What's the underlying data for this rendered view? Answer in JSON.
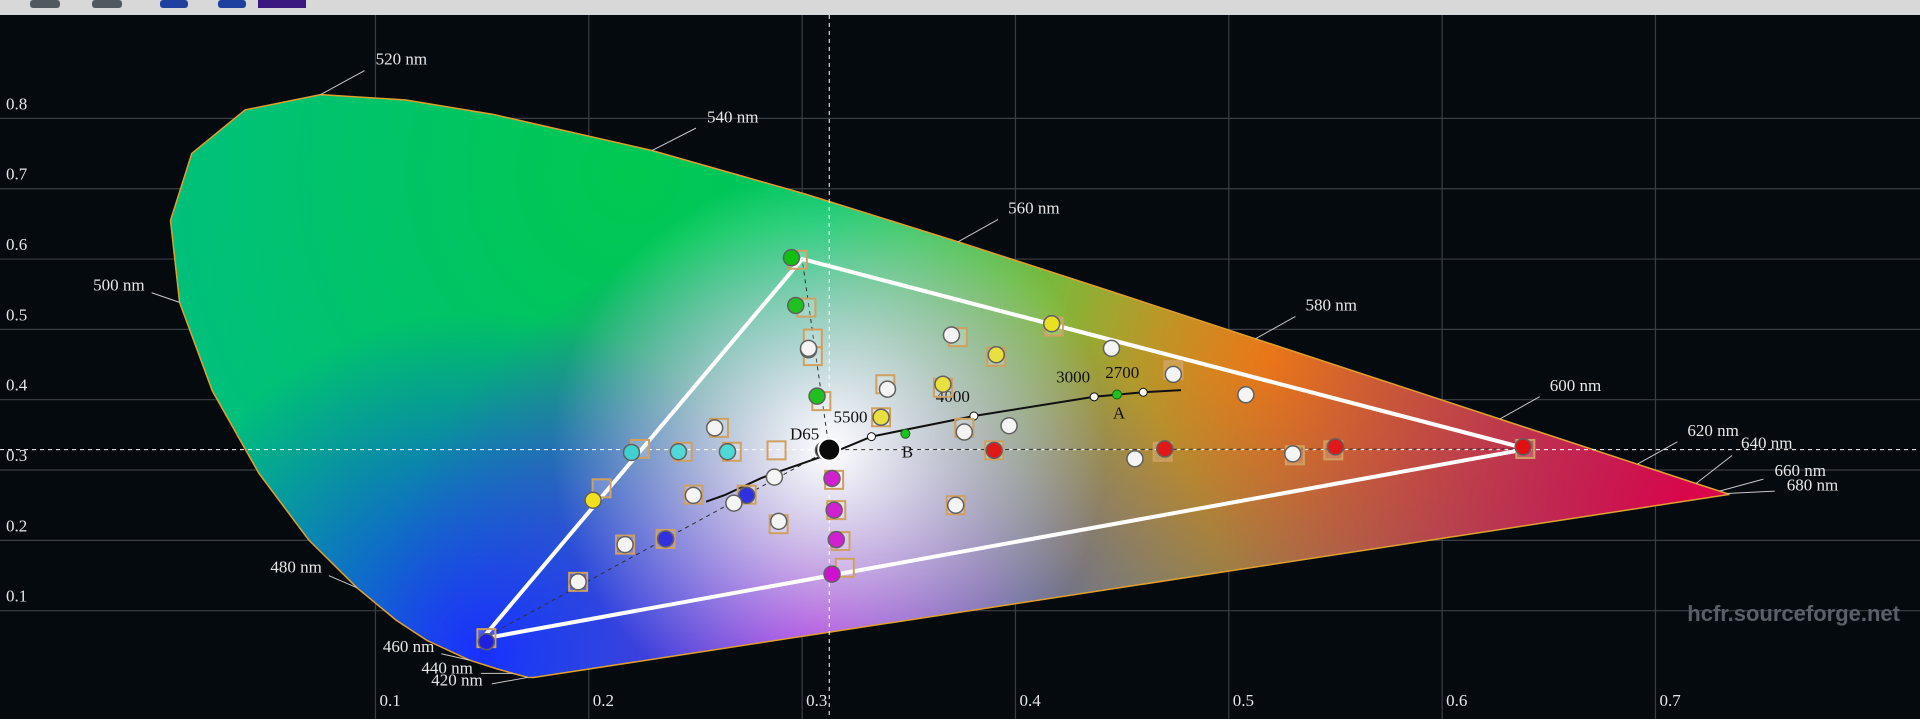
{
  "chart_data": {
    "type": "cie",
    "xlim": [
      -0.076,
      0.824
    ],
    "ylim": [
      -0.054,
      0.947
    ],
    "xticks": [
      0.1,
      0.2,
      0.3,
      0.4,
      0.5,
      0.6,
      0.7
    ],
    "yticks": [
      0.1,
      0.2,
      0.3,
      0.4,
      0.5,
      0.6,
      0.7,
      0.8
    ],
    "grid": true,
    "locus": {
      "x": [
        0.1741,
        0.1714,
        0.1644,
        0.1566,
        0.144,
        0.1241,
        0.1096,
        0.0913,
        0.0687,
        0.0454,
        0.0235,
        0.0082,
        0.0039,
        0.0139,
        0.0389,
        0.0743,
        0.1142,
        0.1547,
        0.2296,
        0.3016,
        0.3731,
        0.4441,
        0.5125,
        0.5752,
        0.627,
        0.6658,
        0.6915,
        0.719,
        0.73,
        0.7334,
        0.7347
      ],
      "y": [
        0.005,
        0.0051,
        0.0109,
        0.0177,
        0.0297,
        0.0578,
        0.0868,
        0.1327,
        0.2007,
        0.295,
        0.4127,
        0.5384,
        0.6548,
        0.7502,
        0.812,
        0.8338,
        0.8262,
        0.8059,
        0.7543,
        0.6923,
        0.6245,
        0.5547,
        0.4866,
        0.4242,
        0.3725,
        0.334,
        0.3083,
        0.2809,
        0.27,
        0.2666,
        0.2653
      ]
    },
    "wavelength_labels": [
      {
        "label": "520 nm",
        "x": 0.0743,
        "y": 0.8338
      },
      {
        "label": "540 nm",
        "x": 0.2296,
        "y": 0.7543
      },
      {
        "label": "560 nm",
        "x": 0.3731,
        "y": 0.6245
      },
      {
        "label": "580 nm",
        "x": 0.5125,
        "y": 0.4866
      },
      {
        "label": "600 nm",
        "x": 0.627,
        "y": 0.3725
      },
      {
        "label": "620 nm",
        "x": 0.6915,
        "y": 0.3083
      },
      {
        "label": "640 nm",
        "x": 0.719,
        "y": 0.2809
      },
      {
        "label": "660 nm",
        "x": 0.73,
        "y": 0.27
      },
      {
        "label": "680 nm",
        "x": 0.7334,
        "y": 0.2666
      },
      {
        "label": "500 nm",
        "x": 0.0082,
        "y": 0.5384
      },
      {
        "label": "480 nm",
        "x": 0.0913,
        "y": 0.1327
      },
      {
        "label": "460 nm",
        "x": 0.144,
        "y": 0.0297
      },
      {
        "label": "440 nm",
        "x": 0.1644,
        "y": 0.0109
      },
      {
        "label": "420 nm",
        "x": 0.1714,
        "y": 0.0051
      }
    ],
    "gamut": {
      "x": [
        0.64,
        0.3,
        0.15
      ],
      "y": [
        0.33,
        0.6,
        0.06
      ],
      "color": "#ffffff"
    },
    "white_point": {
      "label": "D65",
      "x": 0.3127,
      "y": 0.329
    },
    "planckian": {
      "x": [
        0.255,
        0.2637,
        0.2807,
        0.2848,
        0.3135,
        0.3325,
        0.3805,
        0.4369,
        0.4599,
        0.4776
      ],
      "y": [
        0.255,
        0.2644,
        0.2884,
        0.2932,
        0.3236,
        0.3475,
        0.3768,
        0.4041,
        0.4106,
        0.4137
      ]
    },
    "temperature_labels": [
      {
        "label": "5500",
        "x": 0.3325,
        "y": 0.3475
      },
      {
        "label": "4000",
        "x": 0.3805,
        "y": 0.3768
      },
      {
        "label": "3000",
        "x": 0.4369,
        "y": 0.4041
      },
      {
        "label": "2700",
        "x": 0.4599,
        "y": 0.4106
      }
    ],
    "illuminants": [
      {
        "label": "A",
        "x": 0.4476,
        "y": 0.4074
      },
      {
        "label": "B",
        "x": 0.3484,
        "y": 0.3516
      }
    ],
    "targets": {
      "color": "#d0a060",
      "x": [
        0.298,
        0.302,
        0.305,
        0.305,
        0.309,
        0.418,
        0.391,
        0.366,
        0.339,
        0.337,
        0.639,
        0.549,
        0.469,
        0.39,
        0.152,
        0.236,
        0.274,
        0.315,
        0.316,
        0.318,
        0.32,
        0.224,
        0.244,
        0.267,
        0.288,
        0.373,
        0.261,
        0.249,
        0.289,
        0.217,
        0.195,
        0.206,
        0.372,
        0.531,
        0.474,
        0.376
      ],
      "y": [
        0.599,
        0.531,
        0.487,
        0.462,
        0.398,
        0.504,
        0.461,
        0.417,
        0.422,
        0.375,
        0.33,
        0.328,
        0.326,
        0.328,
        0.061,
        0.202,
        0.265,
        0.286,
        0.243,
        0.199,
        0.161,
        0.33,
        0.326,
        0.326,
        0.328,
        0.489,
        0.36,
        0.265,
        0.223,
        0.194,
        0.141,
        0.274,
        0.25,
        0.321,
        0.442,
        0.36
      ]
    },
    "measurements": {
      "x": [
        0.638,
        0.295,
        0.152,
        0.417,
        0.22,
        0.314,
        0.31,
        0.55,
        0.47,
        0.39,
        0.297,
        0.303,
        0.307,
        0.236,
        0.274,
        0.316,
        0.315,
        0.314,
        0.242,
        0.265,
        0.391,
        0.366,
        0.337,
        0.202,
        0.37,
        0.34,
        0.445,
        0.474,
        0.508,
        0.376,
        0.397,
        0.456,
        0.53,
        0.372,
        0.287,
        0.268,
        0.249,
        0.259,
        0.289,
        0.217,
        0.195,
        0.303
      ],
      "y": [
        0.333,
        0.602,
        0.056,
        0.508,
        0.325,
        0.152,
        0.328,
        0.333,
        0.33,
        0.328,
        0.534,
        0.471,
        0.405,
        0.202,
        0.264,
        0.201,
        0.243,
        0.288,
        0.326,
        0.326,
        0.464,
        0.422,
        0.375,
        0.257,
        0.492,
        0.415,
        0.473,
        0.436,
        0.407,
        0.354,
        0.363,
        0.316,
        0.323,
        0.25,
        0.29,
        0.253,
        0.264,
        0.36,
        0.227,
        0.194,
        0.141,
        0.473
      ],
      "colors": [
        "#e01010",
        "#10c010",
        "#2020e0",
        "#e8e020",
        "#40d0d0",
        "#d010d0",
        "#101010",
        "#e01818",
        "#e01818",
        "#e01818",
        "#20c020",
        "#20c020",
        "#20c020",
        "#3030e0",
        "#3030e0",
        "#d020d0",
        "#d020d0",
        "#d020d0",
        "#50d8d8",
        "#50d8d8",
        "#e8e040",
        "#e8e040",
        "#e8e040",
        "#f0e020",
        "#f4f4f4",
        "#f4f4f4",
        "#f4f4f4",
        "#f4f4f4",
        "#f4f4f4",
        "#f4f4f4",
        "#f4f4f4",
        "#f4f4f4",
        "#f4f4f4",
        "#f4f4f4",
        "#f4f4f4",
        "#f4f4f4",
        "#f4f4f4",
        "#f4f4f4",
        "#f4f4f4",
        "#f4f4f4",
        "#f4f4f4",
        "#f4f4f4"
      ]
    },
    "watermark": "hcfr.sourceforge.net"
  }
}
